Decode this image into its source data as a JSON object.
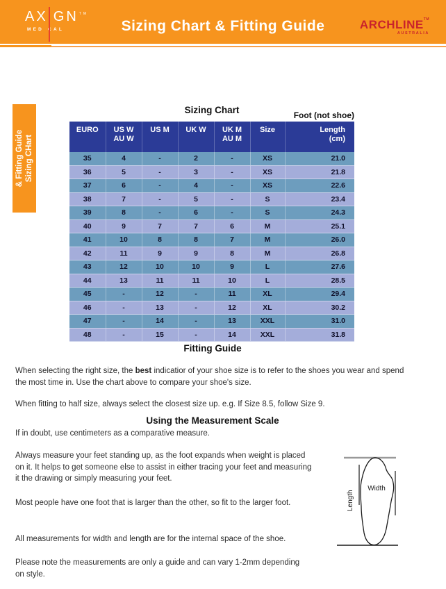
{
  "colors": {
    "orange": "#F7941E",
    "orange_light": "#F8A14B",
    "header_blue": "#2B3B97",
    "row_dark": "#6D9DBE",
    "row_light": "#A4ADDA",
    "axign_red": "#E8432B",
    "archline_red": "#C9232B"
  },
  "banner": {
    "title": "Sizing Chart & Fitting Guide",
    "axign": {
      "part1": "AX",
      "part2": "GN",
      "tm": "TM",
      "sub1": "MED",
      "sub2": "CAL"
    },
    "archline": {
      "name": "ARCHLINE",
      "tm": "TM",
      "country": "AUSTRALIA"
    }
  },
  "side_tab": {
    "line1": "Sizing CHart",
    "line2": "& Fitting Guide"
  },
  "sizing_chart": {
    "title": "Sizing Chart",
    "foot_label": "Foot (not shoe)",
    "columns": [
      {
        "l1": "EURO",
        "l2": ""
      },
      {
        "l1": "US W",
        "l2": "AU W"
      },
      {
        "l1": "US M",
        "l2": ""
      },
      {
        "l1": "UK W",
        "l2": ""
      },
      {
        "l1": "UK M",
        "l2": "AU M"
      },
      {
        "l1": "Size",
        "l2": ""
      },
      {
        "l1": "Length",
        "l2": "(cm)"
      }
    ],
    "rows": [
      [
        "35",
        "4",
        "-",
        "2",
        "-",
        "XS",
        "21.0"
      ],
      [
        "36",
        "5",
        "-",
        "3",
        "-",
        "XS",
        "21.8"
      ],
      [
        "37",
        "6",
        "-",
        "4",
        "-",
        "XS",
        "22.6"
      ],
      [
        "38",
        "7",
        "-",
        "5",
        "-",
        "S",
        "23.4"
      ],
      [
        "39",
        "8",
        "-",
        "6",
        "-",
        "S",
        "24.3"
      ],
      [
        "40",
        "9",
        "7",
        "7",
        "6",
        "M",
        "25.1"
      ],
      [
        "41",
        "10",
        "8",
        "8",
        "7",
        "M",
        "26.0"
      ],
      [
        "42",
        "11",
        "9",
        "9",
        "8",
        "M",
        "26.8"
      ],
      [
        "43",
        "12",
        "10",
        "10",
        "9",
        "L",
        "27.6"
      ],
      [
        "44",
        "13",
        "11",
        "11",
        "10",
        "L",
        "28.5"
      ],
      [
        "45",
        "-",
        "12",
        "-",
        "11",
        "XL",
        "29.4"
      ],
      [
        "46",
        "-",
        "13",
        "-",
        "12",
        "XL",
        "30.2"
      ],
      [
        "47",
        "-",
        "14",
        "-",
        "13",
        "XXL",
        "31.0"
      ],
      [
        "48",
        "-",
        "15",
        "-",
        "14",
        "XXL",
        "31.8"
      ]
    ]
  },
  "fitting_guide": {
    "heading": "Fitting Guide",
    "p1_before": "When selecting the right size, the ",
    "p1_bold": "best",
    "p1_after": " indicatior of your shoe size is to refer to the shoes you wear and spend\nthe most time in. Use the chart above to compare your shoe's size.",
    "p2": "When fitting to half size, always select the closest size up. e.g. If Size 8.5, follow Size 9."
  },
  "measurement": {
    "heading": "Using the Measurement Scale",
    "p3": "If in doubt, use centimeters as a comparative measure.",
    "p4": "Always measure your feet standing up, as the foot expands when weight is placed\non it. It helps to get someone else to assist in either tracing your feet and measuring\nit the drawing or simply measuring your feet.",
    "p5": "Most people have one foot that is larger than the other, so fit to the larger foot.",
    "p6": "All measurements for width and length are for the internal space of the shoe.",
    "p7": "Please note the measurements are only a guide and can vary 1-2mm depending\non style."
  },
  "diagram": {
    "width_label": "Width",
    "length_label": "Length"
  }
}
